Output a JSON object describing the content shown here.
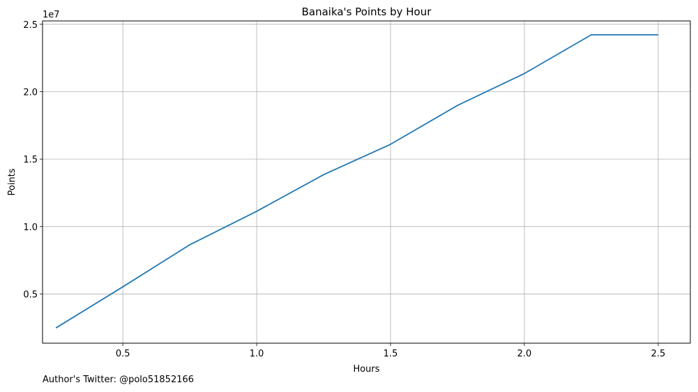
{
  "credit": "Author's Twitter: @polo51852166",
  "chart_data": {
    "type": "line",
    "title": "Banaika's Points by Hour",
    "xlabel": "Hours",
    "ylabel": "Points",
    "y_offset_label": "1e7",
    "xlim": [
      0.2,
      2.62
    ],
    "ylim": [
      1350000,
      25250000
    ],
    "x_ticks": [
      0.5,
      1.0,
      1.5,
      2.0,
      2.5
    ],
    "x_tick_labels": [
      "0.5",
      "1.0",
      "1.5",
      "2.0",
      "2.5"
    ],
    "y_ticks": [
      5000000,
      10000000,
      15000000,
      20000000,
      25000000
    ],
    "y_tick_labels": [
      "0.5",
      "1.0",
      "1.5",
      "2.0",
      "2.5"
    ],
    "grid": true,
    "color": "#1f77b4",
    "x": [
      0.25,
      0.5,
      0.75,
      1.0,
      1.25,
      1.5,
      1.75,
      2.0,
      2.25,
      2.5
    ],
    "y": [
      2480000,
      5530000,
      8650000,
      11130000,
      13850000,
      16100000,
      18980000,
      21350000,
      24220000,
      24220000
    ]
  }
}
